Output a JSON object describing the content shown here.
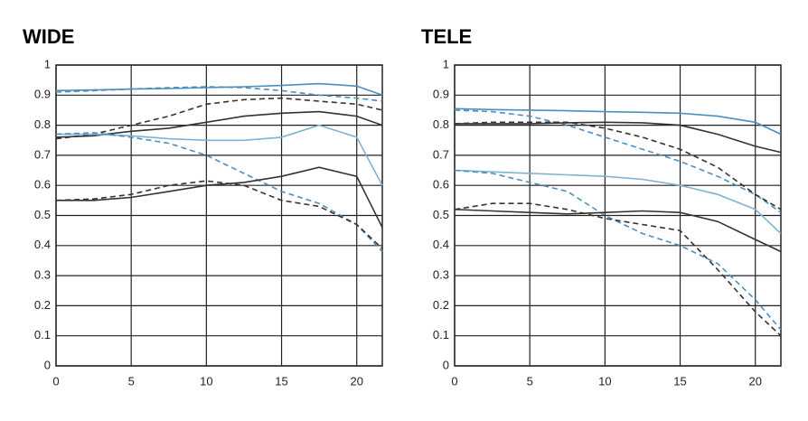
{
  "chart_data": [
    {
      "type": "line",
      "title": "WIDE",
      "x": [
        0,
        2.5,
        5,
        7.5,
        10,
        12.5,
        15,
        17.5,
        20,
        21.7
      ],
      "xlim": [
        0,
        21.7
      ],
      "xticks": [
        0,
        5,
        10,
        15,
        20
      ],
      "ylim": [
        0,
        1
      ],
      "yticks": [
        0,
        0.1,
        0.2,
        0.3,
        0.4,
        0.5,
        0.6,
        0.7,
        0.8,
        0.9,
        1
      ],
      "grid": true,
      "series": [
        {
          "color": "#4a8fbd",
          "dashed": false,
          "values": [
            0.915,
            0.917,
            0.92,
            0.922,
            0.925,
            0.928,
            0.932,
            0.938,
            0.93,
            0.9
          ]
        },
        {
          "color": "#4a8fbd",
          "dashed": true,
          "values": [
            0.91,
            0.915,
            0.92,
            0.925,
            0.928,
            0.925,
            0.915,
            0.9,
            0.89,
            0.88
          ]
        },
        {
          "color": "#333333",
          "dashed": false,
          "values": [
            0.76,
            0.765,
            0.78,
            0.79,
            0.81,
            0.83,
            0.84,
            0.845,
            0.83,
            0.8
          ]
        },
        {
          "color": "#333333",
          "dashed": true,
          "values": [
            0.755,
            0.77,
            0.8,
            0.83,
            0.87,
            0.885,
            0.89,
            0.88,
            0.87,
            0.85
          ]
        },
        {
          "color": "#7fb3d3",
          "dashed": false,
          "values": [
            0.77,
            0.77,
            0.765,
            0.755,
            0.75,
            0.75,
            0.76,
            0.8,
            0.76,
            0.6
          ]
        },
        {
          "color": "#4a8fbd",
          "dashed": true,
          "values": [
            0.77,
            0.775,
            0.76,
            0.74,
            0.7,
            0.64,
            0.58,
            0.54,
            0.47,
            0.38
          ]
        },
        {
          "color": "#333333",
          "dashed": false,
          "values": [
            0.55,
            0.55,
            0.56,
            0.58,
            0.6,
            0.61,
            0.63,
            0.66,
            0.63,
            0.46
          ]
        },
        {
          "color": "#333333",
          "dashed": true,
          "values": [
            0.55,
            0.555,
            0.57,
            0.6,
            0.615,
            0.6,
            0.55,
            0.53,
            0.47,
            0.39
          ]
        }
      ]
    },
    {
      "type": "line",
      "title": "TELE",
      "x": [
        0,
        2.5,
        5,
        7.5,
        10,
        12.5,
        15,
        17.5,
        20,
        21.7
      ],
      "xlim": [
        0,
        21.7
      ],
      "xticks": [
        0,
        5,
        10,
        15,
        20
      ],
      "ylim": [
        0,
        1
      ],
      "yticks": [
        0,
        0.1,
        0.2,
        0.3,
        0.4,
        0.5,
        0.6,
        0.7,
        0.8,
        0.9,
        1
      ],
      "grid": true,
      "series": [
        {
          "color": "#4a8fbd",
          "dashed": false,
          "values": [
            0.855,
            0.852,
            0.85,
            0.848,
            0.845,
            0.843,
            0.84,
            0.83,
            0.81,
            0.77
          ]
        },
        {
          "color": "#4a8fbd",
          "dashed": true,
          "values": [
            0.85,
            0.845,
            0.83,
            0.8,
            0.76,
            0.72,
            0.68,
            0.63,
            0.57,
            0.51
          ]
        },
        {
          "color": "#333333",
          "dashed": false,
          "values": [
            0.805,
            0.805,
            0.805,
            0.808,
            0.81,
            0.808,
            0.8,
            0.77,
            0.73,
            0.71
          ]
        },
        {
          "color": "#333333",
          "dashed": true,
          "values": [
            0.805,
            0.81,
            0.81,
            0.81,
            0.79,
            0.76,
            0.72,
            0.66,
            0.57,
            0.52
          ]
        },
        {
          "color": "#7fb3d3",
          "dashed": false,
          "values": [
            0.65,
            0.645,
            0.64,
            0.635,
            0.63,
            0.62,
            0.6,
            0.57,
            0.52,
            0.44
          ]
        },
        {
          "color": "#4a8fbd",
          "dashed": true,
          "values": [
            0.65,
            0.64,
            0.61,
            0.58,
            0.5,
            0.44,
            0.4,
            0.34,
            0.22,
            0.12
          ]
        },
        {
          "color": "#333333",
          "dashed": false,
          "values": [
            0.52,
            0.515,
            0.51,
            0.505,
            0.51,
            0.515,
            0.51,
            0.48,
            0.42,
            0.38
          ]
        },
        {
          "color": "#333333",
          "dashed": true,
          "values": [
            0.52,
            0.54,
            0.54,
            0.52,
            0.49,
            0.47,
            0.45,
            0.32,
            0.18,
            0.1
          ]
        }
      ]
    }
  ]
}
